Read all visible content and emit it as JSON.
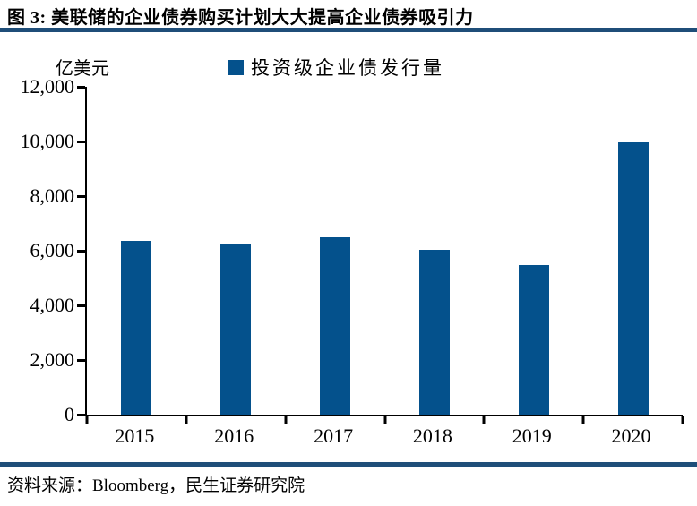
{
  "header": {
    "title": "图 3:  美联储的企业债券购买计划大大提高企业债券吸引力"
  },
  "footer": {
    "source": "资料来源：Bloomberg，民生证券研究院"
  },
  "colors": {
    "bar": "#04518C",
    "rule": "#1F4E79",
    "axis": "#000000"
  },
  "chart_data": {
    "type": "bar",
    "title": "美联储的企业债券购买计划大大提高企业债券吸引力",
    "unit_label": "亿美元",
    "legend": "投资级企业债发行量",
    "legend_position": "top-center",
    "categories": [
      "2015",
      "2016",
      "2017",
      "2018",
      "2019",
      "2020"
    ],
    "values": [
      6350,
      6270,
      6500,
      6020,
      5470,
      9970
    ],
    "xlabel": "",
    "ylabel": "亿美元",
    "ylim": [
      0,
      12000
    ],
    "y_ticks": [
      0,
      2000,
      4000,
      6000,
      8000,
      10000,
      12000
    ],
    "y_tick_labels": [
      "0",
      "2,000",
      "4,000",
      "6,000",
      "8,000",
      "10,000",
      "12,000"
    ],
    "grid": false,
    "bar_color": "#04518C"
  }
}
